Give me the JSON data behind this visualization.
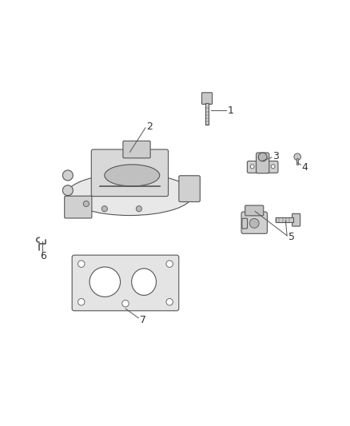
{
  "title": "",
  "bg_color": "#ffffff",
  "fig_width": 4.38,
  "fig_height": 5.33,
  "dpi": 100,
  "line_color": "#555555",
  "label_color": "#333333",
  "label_fontsize": 9
}
